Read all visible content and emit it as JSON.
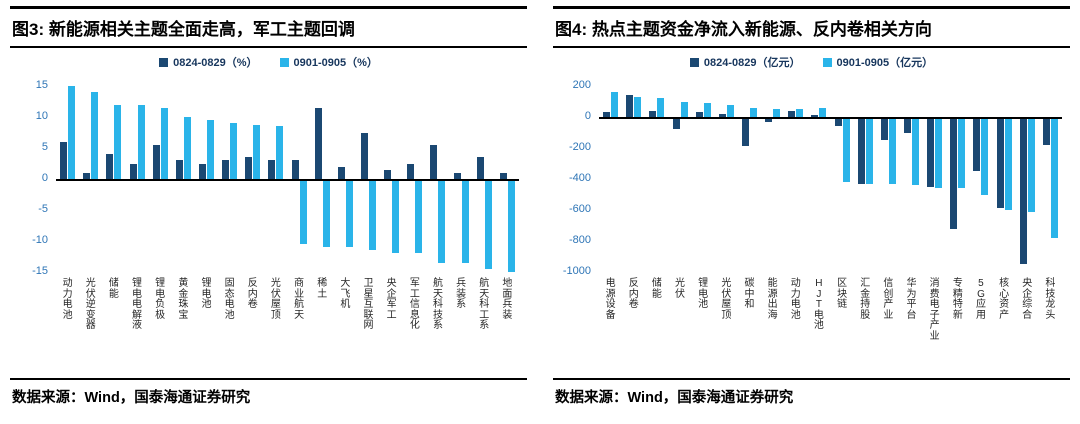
{
  "colors": {
    "series1": "#1b4872",
    "series2": "#2ab4e9",
    "ytick_label": "#2e75b6",
    "axis_line": "#000000"
  },
  "chart_data": [
    {
      "type": "bar",
      "title": "图3: 新能源相关主题全面走高，军工主题回调",
      "source": "数据来源：Wind，国泰海通证券研究",
      "legend_position": "top",
      "grid": false,
      "ylim": [
        -15,
        15
      ],
      "yticks": [
        15,
        10,
        5,
        0,
        -5,
        -10,
        -15
      ],
      "categories": [
        "动力电池",
        "光伏逆变器",
        "储能",
        "锂电电解液",
        "锂电负极",
        "黄金珠宝",
        "锂电池",
        "固态电池",
        "反内卷",
        "光伏屋顶",
        "商业航天",
        "稀土",
        "大飞机",
        "卫星互联网",
        "央企军工",
        "军工信息化",
        "航天科技系",
        "兵装系",
        "航天科工系",
        "地面兵装"
      ],
      "series": [
        {
          "name": "0824-0829（%）",
          "color": "#1b4872",
          "values": [
            6,
            1,
            4,
            2.5,
            5.5,
            3,
            2.5,
            3,
            3.5,
            3,
            3,
            11.5,
            2,
            7.5,
            1.5,
            2.5,
            5.5,
            1,
            3.5,
            1
          ]
        },
        {
          "name": "0901-0905（%）",
          "color": "#2ab4e9",
          "values": [
            15,
            14,
            12,
            12,
            11.5,
            10,
            9.5,
            9,
            8.7,
            8.5,
            -10.5,
            -11,
            -11,
            -11.5,
            -12,
            -12,
            -13.5,
            -13.5,
            -14.5,
            -15
          ]
        }
      ]
    },
    {
      "type": "bar",
      "title": "图4: 热点主题资金净流入新能源、反内卷相关方向",
      "source": "数据来源：Wind，国泰海通证券研究",
      "legend_position": "top",
      "grid": false,
      "ylim": [
        -1000,
        200
      ],
      "yticks": [
        200,
        0,
        -200,
        -400,
        -600,
        -800,
        -1000
      ],
      "categories": [
        "电源设备",
        "反内卷",
        "储能",
        "光伏",
        "锂电池",
        "光伏屋顶",
        "碳中和",
        "能源出海",
        "动力电池",
        "HJT电池",
        "区块链",
        "汇金持股",
        "信创产业",
        "华为平台",
        "消费电子产业",
        "专精特新",
        "5G应用",
        "核心资产",
        "央企综合",
        "科技龙头"
      ],
      "series": [
        {
          "name": "0824-0829（亿元）",
          "color": "#1b4872",
          "values": [
            30,
            140,
            40,
            -80,
            30,
            20,
            -190,
            -30,
            40,
            10,
            -60,
            -430,
            -150,
            -100,
            -450,
            -720,
            -350,
            -590,
            -950,
            -180
          ]
        },
        {
          "name": "0901-0905（亿元）",
          "color": "#2ab4e9",
          "values": [
            160,
            130,
            120,
            100,
            90,
            80,
            60,
            50,
            50,
            60,
            -420,
            -430,
            -430,
            -440,
            -460,
            -460,
            -500,
            -600,
            -610,
            -780
          ]
        }
      ]
    }
  ]
}
